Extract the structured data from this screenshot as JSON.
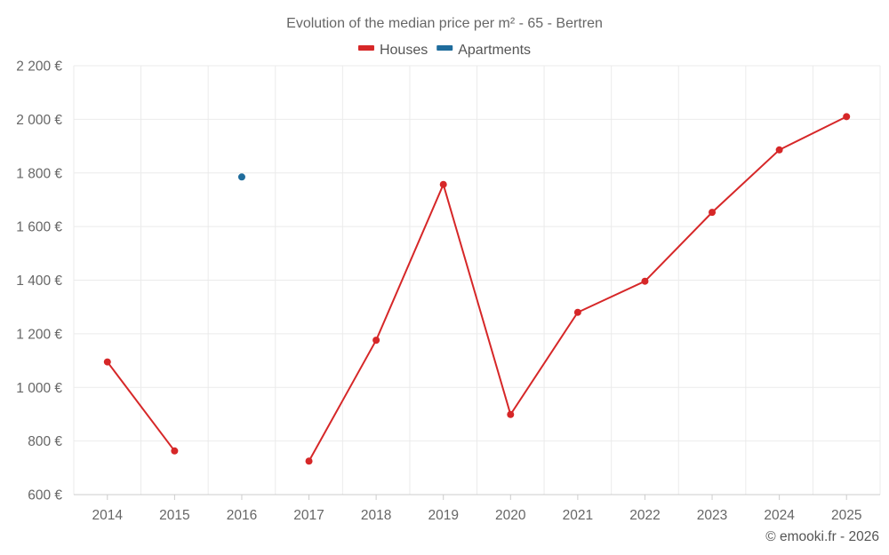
{
  "chart_data": {
    "type": "line",
    "title": "Evolution of the median price per m² - 65 - Bertren",
    "categories": [
      "2014",
      "2015",
      "2016",
      "2017",
      "2018",
      "2019",
      "2020",
      "2021",
      "2022",
      "2023",
      "2024",
      "2025"
    ],
    "series": [
      {
        "name": "Houses",
        "color": "#d62728",
        "values": [
          1095,
          763,
          null,
          725,
          1176,
          1757,
          899,
          1280,
          1396,
          1653,
          1886,
          2010
        ]
      },
      {
        "name": "Apartments",
        "color": "#1f6c9c",
        "values": [
          null,
          null,
          1785,
          null,
          null,
          null,
          null,
          null,
          null,
          null,
          null,
          null
        ]
      }
    ],
    "ylim": [
      600,
      2200
    ],
    "yticks": [
      600,
      800,
      1000,
      1200,
      1400,
      1600,
      1800,
      2000,
      2200
    ],
    "ytick_labels": [
      "600 €",
      "800 €",
      "1 000 €",
      "1 200 €",
      "1 400 €",
      "1 600 €",
      "1 800 €",
      "2 000 €",
      "2 200 €"
    ],
    "xlabel": "",
    "ylabel": "",
    "grid": true,
    "legend_position": "top-center"
  },
  "credit": "© emooki.fr - 2026"
}
